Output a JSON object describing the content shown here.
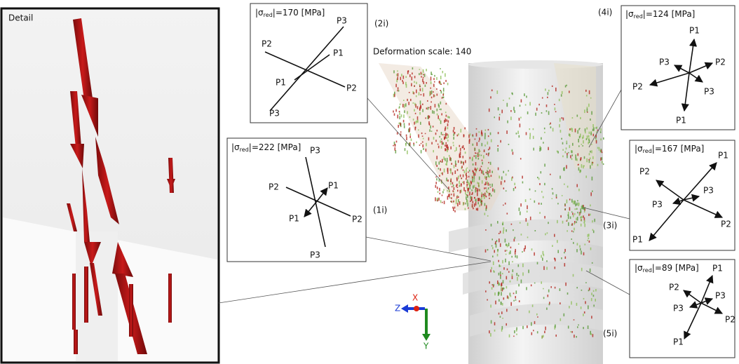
{
  "detail_label": "Detail",
  "deformation_scale": "Deformation scale: 140",
  "triad": {
    "x": "X",
    "y": "Y",
    "z": "Z"
  },
  "panels": [
    {
      "id": "(2i)",
      "stress": {
        "lead": "|σ",
        "sub": "red",
        "tail": "|=170 [MPa]"
      },
      "labels": [
        "P3",
        "P2",
        "P1",
        "P1",
        "P2",
        "P3"
      ]
    },
    {
      "id": "(1i)",
      "stress": {
        "lead": "|σ",
        "sub": "red",
        "tail": "|=222 [MPa]"
      },
      "labels": [
        "P3",
        "P2",
        "P1",
        "P1",
        "P2",
        "P3"
      ]
    },
    {
      "id": "(4i)",
      "stress": {
        "lead": "|σ",
        "sub": "red",
        "tail": "|=124 [MPa]"
      },
      "labels": [
        "P1",
        "P3",
        "P2",
        "P2",
        "P3",
        "P1"
      ]
    },
    {
      "id": "(3i)",
      "stress": {
        "lead": "|σ",
        "sub": "red",
        "tail": "|=167 [MPa]"
      },
      "labels": [
        "P1",
        "P2",
        "P3",
        "P3",
        "P2",
        "P1"
      ]
    },
    {
      "id": "(5i)",
      "stress": {
        "lead": "|σ",
        "sub": "red",
        "tail": "|=89 [MPa]"
      },
      "labels": [
        "P1",
        "P2",
        "P3",
        "P3",
        "P2",
        "P1"
      ]
    }
  ]
}
